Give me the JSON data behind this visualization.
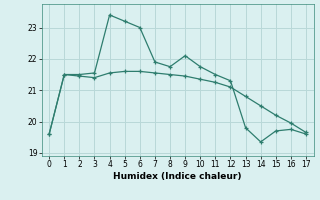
{
  "xlabel": "Humidex (Indice chaleur)",
  "x": [
    0,
    1,
    2,
    3,
    4,
    5,
    6,
    7,
    8,
    9,
    10,
    11,
    12,
    13,
    14,
    15,
    16,
    17
  ],
  "line1": [
    19.6,
    21.5,
    21.5,
    21.55,
    23.4,
    23.2,
    23.0,
    21.9,
    21.75,
    22.1,
    21.75,
    21.5,
    21.3,
    19.8,
    19.35,
    19.7,
    19.75,
    19.6
  ],
  "line2": [
    19.6,
    21.5,
    21.45,
    21.4,
    21.55,
    21.6,
    21.6,
    21.55,
    21.5,
    21.45,
    21.35,
    21.25,
    21.1,
    20.8,
    20.5,
    20.2,
    19.95,
    19.65
  ],
  "line_color": "#2e7d6e",
  "bg_color": "#daf0f0",
  "grid_color": "#b8d8d8",
  "ylim": [
    18.9,
    23.75
  ],
  "yticks": [
    19,
    20,
    21,
    22,
    23
  ],
  "xticks": [
    0,
    1,
    2,
    3,
    4,
    5,
    6,
    7,
    8,
    9,
    10,
    11,
    12,
    13,
    14,
    15,
    16,
    17
  ]
}
